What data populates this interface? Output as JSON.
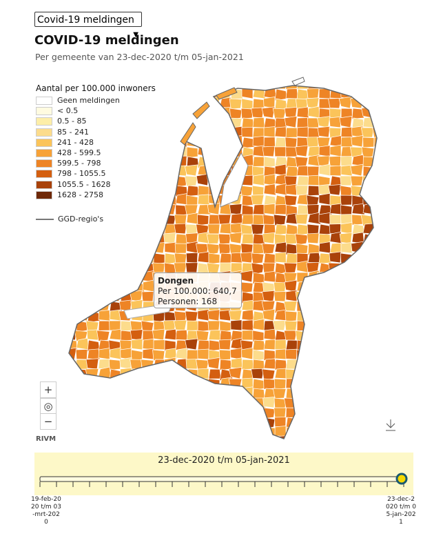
{
  "selector": {
    "selected": "Covid-19 meldingen"
  },
  "header": {
    "title": "COVID-19 meldingen",
    "subtitle": "Per gemeente van 23-dec-2020 t/m 05-jan-2021"
  },
  "legend": {
    "title": "Aantal per 100.000 inwoners",
    "items": [
      {
        "label": "Geen meldingen",
        "color": "#ffffff"
      },
      {
        "label": "< 0.5",
        "color": "#fffbe0"
      },
      {
        "label": "0.5 - 85",
        "color": "#fdeea8"
      },
      {
        "label": "85 - 241",
        "color": "#fcdc8c"
      },
      {
        "label": "241 - 428",
        "color": "#fbc45a"
      },
      {
        "label": "428 - 599.5",
        "color": "#f7a238"
      },
      {
        "label": "599.5 - 798",
        "color": "#ee8425"
      },
      {
        "label": "798 - 1055.5",
        "color": "#d45f10"
      },
      {
        "label": "1055.5 - 1628",
        "color": "#a9420a"
      },
      {
        "label": "1628 - 2758",
        "color": "#6e2807"
      }
    ],
    "line_label": "GGD-regio's"
  },
  "tooltip": {
    "name": "Dongen",
    "lines": [
      "Per 100.000: 640,7",
      "Personen: 168"
    ]
  },
  "controls": {
    "zoom_in": "+",
    "reset": "◎",
    "zoom_out": "−"
  },
  "source": "RIVM",
  "timeline": {
    "period": "23-dec-2020 t/m 05-jan-2021",
    "start_label": "19-feb-2020 t/m 03-mrt-2020",
    "end_label": "23-dec-2020 t/m 05-jan-2021"
  }
}
